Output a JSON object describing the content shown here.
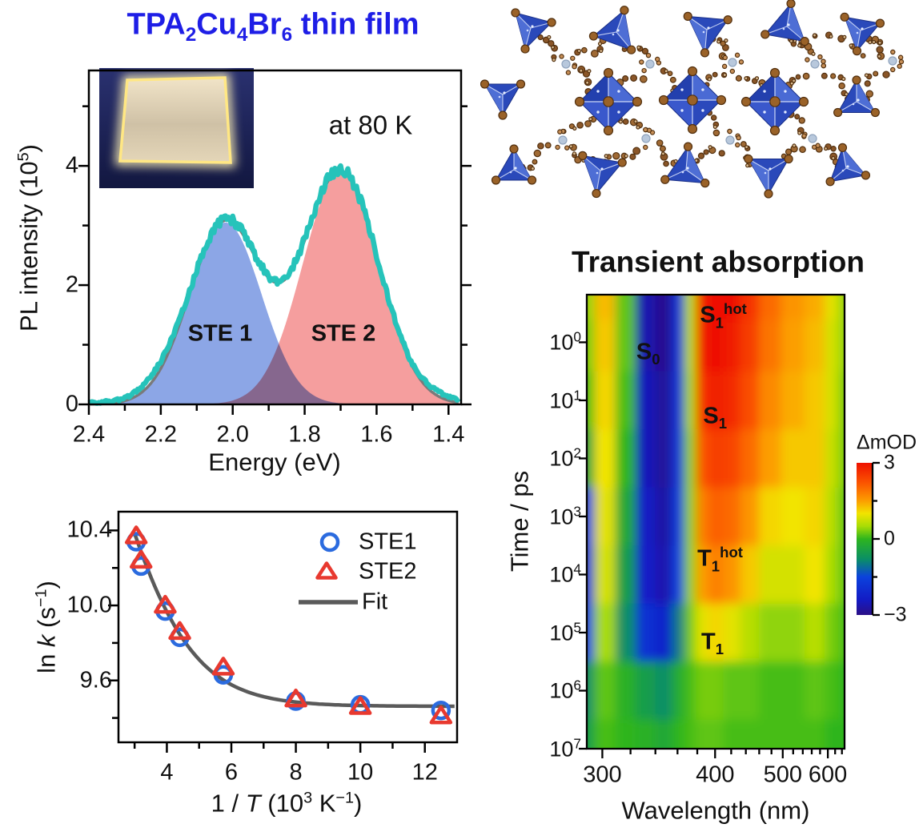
{
  "figure_titles": {
    "pl_title_parts": [
      {
        "t": "TPA"
      },
      {
        "sub": "2"
      },
      {
        "t": "Cu"
      },
      {
        "sub": "4"
      },
      {
        "t": "Br"
      },
      {
        "sub": "6"
      },
      {
        "t": " thin film"
      }
    ],
    "pl_title_color": "#1e1ee6",
    "ta_title": "Transient absorption"
  },
  "pl_panel": {
    "temperature_label": "at 80 K",
    "xlabel": "Energy (eV)",
    "ylabel_parts": [
      {
        "t": "PL intensity (10"
      },
      {
        "sup": "5"
      },
      {
        "t": ")"
      }
    ],
    "ste1_label": "STE 1",
    "ste2_label": "STE 2"
  },
  "arrhenius_panel": {
    "xlabel_parts": [
      {
        "t": "1 / "
      },
      {
        "i": "T"
      },
      {
        "t": " (10"
      },
      {
        "sup": "3"
      },
      {
        "t": " K"
      },
      {
        "sup": "−1"
      },
      {
        "t": ")"
      }
    ],
    "ylabel_parts": [
      {
        "t": "ln "
      },
      {
        "i": "k"
      },
      {
        "t": " (s"
      },
      {
        "sup": "−1"
      },
      {
        "t": ")"
      }
    ],
    "legend": {
      "ste1": "STE1",
      "ste2": "STE2",
      "fit": "Fit"
    }
  },
  "ta_panel": {
    "xlabel": "Wavelength (nm)",
    "ylabel": "Time / ps",
    "colorbar_label": "ΔmOD",
    "annotations": [
      {
        "id": "s0",
        "parts": [
          {
            "t": "S"
          },
          {
            "sub": "0"
          }
        ],
        "wavelength_nm": 334,
        "time_log10_ps": 0.2
      },
      {
        "id": "s1hot",
        "parts": [
          {
            "t": "S"
          },
          {
            "sub": "1"
          },
          {
            "sup": "hot"
          }
        ],
        "wavelength_nm": 410,
        "time_log10_ps": -0.45
      },
      {
        "id": "s1",
        "parts": [
          {
            "t": "S"
          },
          {
            "sub": "1"
          }
        ],
        "wavelength_nm": 400,
        "time_log10_ps": 1.3
      },
      {
        "id": "t1hot",
        "parts": [
          {
            "t": "T"
          },
          {
            "sub": "1"
          },
          {
            "sup": "hot"
          }
        ],
        "wavelength_nm": 406,
        "time_log10_ps": 3.75
      },
      {
        "id": "t1",
        "parts": [
          {
            "t": "T"
          },
          {
            "sub": "1"
          }
        ],
        "wavelength_nm": 397,
        "time_log10_ps": 5.2
      }
    ]
  },
  "chart_data": [
    {
      "id": "pl_spectrum",
      "type": "area",
      "title": "TPA2Cu4Br6 thin film",
      "annotation": "at 80 K",
      "xlabel": "Energy (eV)",
      "ylabel": "PL intensity (10^5)",
      "x_axis_reversed": true,
      "xlim": [
        2.4,
        1.365
      ],
      "ylim": [
        0,
        5.6
      ],
      "x_ticks": [
        2.4,
        2.2,
        2.0,
        1.8,
        1.6,
        1.4
      ],
      "x_minor_step": 0.1,
      "y_ticks": [
        0,
        2,
        4
      ],
      "y_minor_ticks": [
        1,
        3,
        5
      ],
      "series": [
        {
          "name": "STE 1",
          "type": "gaussian_area",
          "center_eV": 2.02,
          "sigma_eV": 0.1,
          "amplitude_1e5": 3.05,
          "fill_color": "#8ca6e6"
        },
        {
          "name": "STE 2",
          "type": "gaussian_area",
          "center_eV": 1.7,
          "sigma_eV": 0.105,
          "amplitude_1e5": 3.9,
          "fill_color": "#f59e9e"
        },
        {
          "name": "Fit sum",
          "type": "line",
          "color": "#7a7a7a"
        },
        {
          "name": "Data",
          "type": "noisy_line",
          "color": "#26c3ba",
          "noise_amp": 0.05
        }
      ],
      "ste1_label_xy_eV": [
        2.105,
        1.18
      ],
      "ste2_label_xy_eV": [
        1.695,
        1.18
      ]
    },
    {
      "id": "arrhenius",
      "type": "scatter",
      "xlabel": "1 / T (10^3 K^-1)",
      "ylabel": "ln k (s^-1)",
      "xlim": [
        2.5,
        13.0
      ],
      "ylim": [
        9.27,
        10.5
      ],
      "x_ticks": [
        4,
        6,
        8,
        10,
        12
      ],
      "x_minor_ticks": [
        3,
        5,
        7,
        9,
        11,
        13
      ],
      "y_ticks": [
        9.6,
        10.0,
        10.4
      ],
      "y_minor_ticks": [
        9.4,
        9.8,
        10.2
      ],
      "x_values": [
        3.05,
        3.2,
        3.95,
        4.4,
        5.75,
        8.0,
        10.0,
        12.5
      ],
      "series": [
        {
          "name": "STE1",
          "marker": "circle",
          "color": "#2b6bdf",
          "values": [
            10.34,
            10.21,
            9.97,
            9.83,
            9.63,
            9.49,
            9.47,
            9.44
          ]
        },
        {
          "name": "STE2",
          "marker": "triangle",
          "color": "#e8392f",
          "values": [
            10.37,
            10.24,
            10.0,
            9.86,
            9.67,
            9.5,
            9.46,
            9.41
          ]
        },
        {
          "name": "Fit",
          "type": "line",
          "color": "#5a5a5a",
          "model": "ln_k = ln(k0 + A*exp(-B*x))",
          "k0": 12860,
          "A": 241700,
          "B": 0.839
        }
      ]
    },
    {
      "id": "transient_absorption",
      "type": "heatmap",
      "title": "Transient absorption",
      "xlabel": "Wavelength (nm)",
      "ylabel": "Time / ps",
      "zlabel": "ΔmOD",
      "x_scale": "photon-energy-linear",
      "y_scale": "log",
      "xlim_nm": [
        290,
        648
      ],
      "ylim_log10_ps": [
        -0.82,
        7
      ],
      "zlim": [
        -3,
        3
      ],
      "x_ticks_nm": [
        300,
        400,
        500,
        600
      ],
      "x_minor_ticks_nm": [
        320,
        340,
        360,
        380,
        420,
        440,
        460,
        480,
        520,
        540,
        560,
        580,
        620,
        640
      ],
      "y_tick_exponents": [
        0,
        1,
        2,
        3,
        4,
        5,
        6,
        7
      ],
      "colorbar_ticks": [
        3,
        0,
        -3
      ],
      "colorbar_minor_ticks": [
        1.5,
        -1.5
      ],
      "colormap_stops": [
        [
          3,
          "#ee1100"
        ],
        [
          2.2,
          "#fb5500"
        ],
        [
          1.5,
          "#fc9e00"
        ],
        [
          1.0,
          "#f2e400"
        ],
        [
          0.5,
          "#a8dc05"
        ],
        [
          0,
          "#2eb51e"
        ],
        [
          -0.8,
          "#0a8f66"
        ],
        [
          -1.5,
          "#0b42dd"
        ],
        [
          -2.4,
          "#131bc4"
        ],
        [
          -3,
          "#2b0f86"
        ]
      ],
      "wavelengths_nm": [
        288,
        302,
        316,
        332,
        348,
        362,
        372,
        385,
        400,
        420,
        445,
        475,
        520,
        570,
        615,
        645
      ],
      "times_log10_ps": [
        -0.8,
        0,
        1,
        2,
        3,
        4,
        5,
        6,
        7
      ],
      "delta_mOD": [
        [
          0.4,
          1.3,
          0.2,
          -2.6,
          -2.9,
          -1.8,
          0.6,
          2.9,
          3.0,
          3.0,
          2.6,
          2.0,
          1.6,
          1.4,
          0.9,
          0.4
        ],
        [
          0.3,
          1.2,
          0.2,
          -2.6,
          -2.9,
          -1.8,
          0.6,
          2.9,
          3.0,
          2.9,
          2.5,
          1.9,
          1.5,
          1.3,
          0.8,
          0.4
        ],
        [
          0.1,
          1.1,
          0.1,
          -2.5,
          -2.8,
          -1.8,
          0.5,
          2.6,
          2.9,
          2.7,
          2.3,
          1.7,
          1.4,
          1.2,
          0.8,
          0.3
        ],
        [
          -0.4,
          1.0,
          0.0,
          -2.5,
          -2.8,
          -1.7,
          0.4,
          2.2,
          2.5,
          2.4,
          2.0,
          1.5,
          1.2,
          1.2,
          0.7,
          0.3
        ],
        [
          -1.5,
          0.9,
          -0.3,
          -2.4,
          -2.7,
          -1.6,
          0.4,
          1.8,
          2.1,
          2.0,
          1.6,
          1.1,
          1.0,
          1.1,
          0.6,
          0.2
        ],
        [
          -1.8,
          0.8,
          -0.5,
          -2.3,
          -2.6,
          -1.5,
          0.4,
          1.5,
          1.8,
          1.6,
          1.2,
          0.8,
          0.8,
          1.0,
          0.5,
          0.2
        ],
        [
          -1.5,
          0.5,
          -0.8,
          -1.9,
          -2.2,
          -1.0,
          0.3,
          0.9,
          1.1,
          0.9,
          0.6,
          0.4,
          0.4,
          0.6,
          0.3,
          0.1
        ],
        [
          -0.8,
          0.2,
          -0.1,
          -0.5,
          -0.8,
          -0.2,
          0.1,
          0.3,
          0.3,
          0.2,
          0.2,
          0.1,
          0.1,
          0.2,
          0.1,
          0.0
        ],
        [
          -0.5,
          0.1,
          0.0,
          -0.1,
          -0.3,
          0.0,
          0.1,
          0.2,
          0.2,
          0.1,
          0.1,
          0.1,
          0.1,
          0.1,
          0.0,
          0.0
        ]
      ]
    }
  ]
}
